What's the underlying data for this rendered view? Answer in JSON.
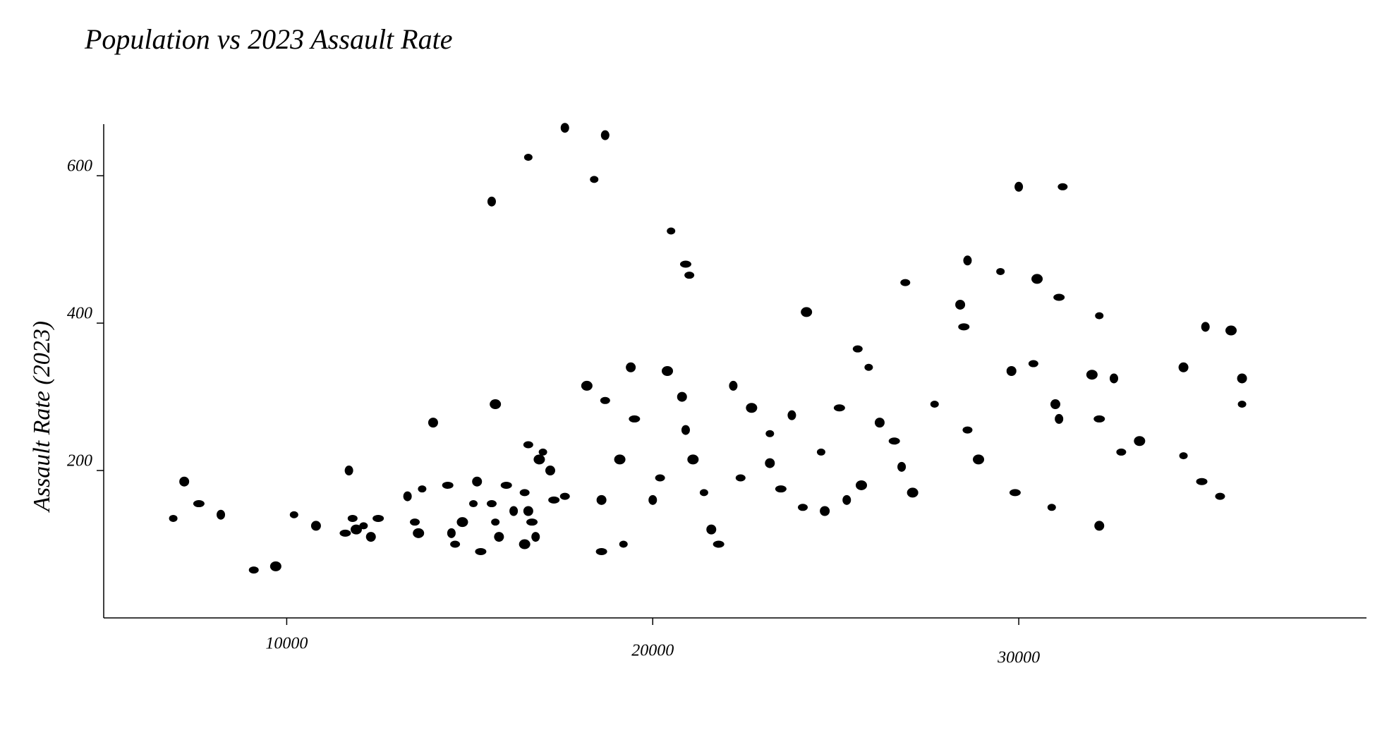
{
  "chart_data": {
    "type": "scatter",
    "title": "Population vs 2023 Assault Rate",
    "y_label": "Assault Rate (2023)",
    "color": "#000000",
    "grid": false,
    "xlim": [
      5000,
      39500
    ],
    "ylim": [
      0,
      670
    ],
    "xticks": [
      10000,
      20000,
      30000
    ],
    "yticks": [
      200,
      400,
      600
    ],
    "x": [
      6900,
      7200,
      7600,
      8200,
      9100,
      9700,
      10200,
      10800,
      11600,
      11700,
      11800,
      11900,
      12100,
      12300,
      12500,
      13300,
      13500,
      13600,
      13700,
      14000,
      14400,
      14500,
      14600,
      14800,
      15100,
      15200,
      15300,
      15600,
      15600,
      15700,
      15700,
      15800,
      16000,
      16200,
      16500,
      16500,
      16600,
      16600,
      16700,
      16800,
      16600,
      16900,
      17000,
      17200,
      17300,
      17600,
      17600,
      18200,
      18400,
      18600,
      18600,
      18700,
      18700,
      19100,
      19200,
      19400,
      19500,
      20000,
      20200,
      20400,
      20500,
      20800,
      20900,
      20900,
      21000,
      21100,
      21400,
      21600,
      21800,
      22200,
      22400,
      22700,
      23200,
      23200,
      23500,
      23800,
      24100,
      24200,
      24600,
      24700,
      25100,
      25300,
      25600,
      25700,
      25900,
      26200,
      26600,
      26800,
      26900,
      27100,
      27700,
      28400,
      28500,
      28600,
      28600,
      28900,
      29500,
      29800,
      29900,
      30000,
      30400,
      30500,
      30900,
      31000,
      31100,
      31100,
      31200,
      32000,
      32200,
      32200,
      32200,
      32600,
      32800,
      33300,
      34500,
      34500,
      35000,
      35100,
      35500,
      35800,
      36100,
      36100
    ],
    "y": [
      135,
      185,
      155,
      140,
      65,
      70,
      140,
      125,
      115,
      200,
      135,
      120,
      125,
      110,
      135,
      165,
      130,
      115,
      175,
      265,
      180,
      115,
      100,
      130,
      155,
      185,
      90,
      565,
      155,
      290,
      130,
      110,
      180,
      145,
      170,
      100,
      625,
      145,
      130,
      110,
      235,
      215,
      225,
      200,
      160,
      665,
      165,
      315,
      595,
      160,
      90,
      655,
      295,
      215,
      100,
      340,
      270,
      160,
      190,
      335,
      525,
      300,
      480,
      255,
      465,
      215,
      170,
      120,
      100,
      315,
      190,
      285,
      250,
      210,
      175,
      275,
      150,
      415,
      225,
      145,
      285,
      160,
      365,
      180,
      340,
      265,
      240,
      205,
      455,
      170,
      290,
      425,
      395,
      485,
      255,
      215,
      470,
      335,
      170,
      585,
      345,
      460,
      150,
      290,
      435,
      270,
      585,
      330,
      410,
      125,
      270,
      325,
      225,
      240,
      220,
      340,
      185,
      395,
      165,
      390,
      290,
      325
    ]
  }
}
